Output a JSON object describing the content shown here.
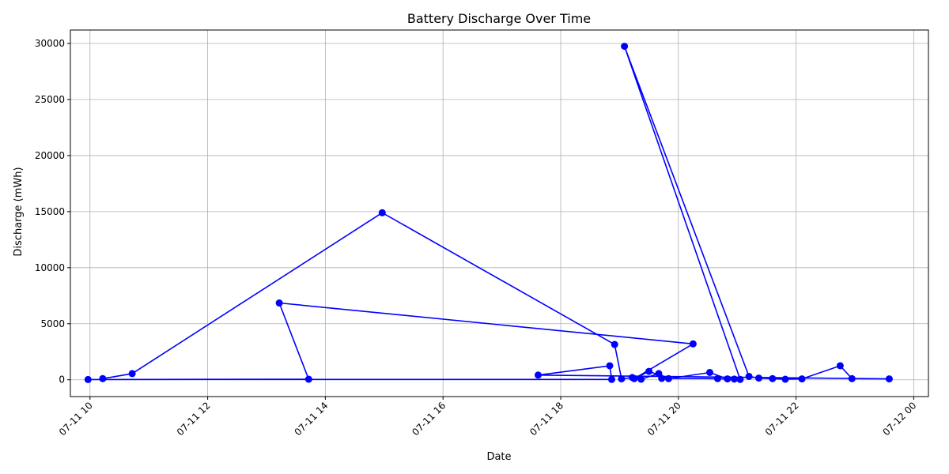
{
  "chart_data": {
    "type": "line",
    "title": "Battery Discharge Over Time",
    "xlabel": "Date",
    "ylabel": "Discharge (mWh)",
    "xlim": [
      "2024-07-11 09:40",
      "2024-07-12 00:15"
    ],
    "ylim": [
      -1500,
      31200
    ],
    "grid": true,
    "line_color": "#0000ff",
    "marker_color": "#0000ff",
    "x_ticks": [
      {
        "t": "2024-07-11 10:00",
        "label": "07-11 10"
      },
      {
        "t": "2024-07-11 12:00",
        "label": "07-11 12"
      },
      {
        "t": "2024-07-11 14:00",
        "label": "07-11 14"
      },
      {
        "t": "2024-07-11 16:00",
        "label": "07-11 16"
      },
      {
        "t": "2024-07-11 18:00",
        "label": "07-11 18"
      },
      {
        "t": "2024-07-11 20:00",
        "label": "07-11 20"
      },
      {
        "t": "2024-07-11 22:00",
        "label": "07-11 22"
      },
      {
        "t": "2024-07-12 00:00",
        "label": "07-12 00"
      }
    ],
    "y_ticks": [
      0,
      5000,
      10000,
      15000,
      20000,
      25000,
      30000
    ],
    "series": [
      {
        "x": [
          "2024-07-11 10:13",
          "2024-07-11 10:43",
          "2024-07-11 14:58",
          "2024-07-11 18:55",
          "2024-07-11 19:02",
          "2024-07-11 19:13",
          "2024-07-11 19:22",
          "2024-07-11 19:40",
          "2024-07-11 19:43",
          "2024-07-11 20:40",
          "2024-07-11 20:57",
          "2024-07-11 21:03",
          "2024-07-11 19:05",
          "2024-07-11 21:12",
          "2024-07-11 21:22",
          "2024-07-11 21:36",
          "2024-07-11 21:49",
          "2024-07-11 22:06",
          "2024-07-11 22:45",
          "2024-07-11 22:57",
          "2024-07-11 23:35",
          "2024-07-11 17:37",
          "2024-07-11 18:50",
          "2024-07-11 18:52",
          "2024-07-11 09:58",
          "2024-07-11 13:43",
          "2024-07-11 13:13",
          "2024-07-11 20:15",
          "2024-07-11 19:15",
          "2024-07-11 19:30",
          "2024-07-11 19:50",
          "2024-07-11 20:32",
          "2024-07-11 20:50"
        ],
        "y": [
          100,
          550,
          14900,
          3150,
          80,
          200,
          50,
          550,
          120,
          100,
          60,
          30,
          29750,
          300,
          150,
          100,
          50,
          80,
          1250,
          100,
          80,
          420,
          1250,
          30,
          20,
          50,
          6850,
          3200,
          100,
          750,
          100,
          650,
          80
        ]
      }
    ]
  }
}
